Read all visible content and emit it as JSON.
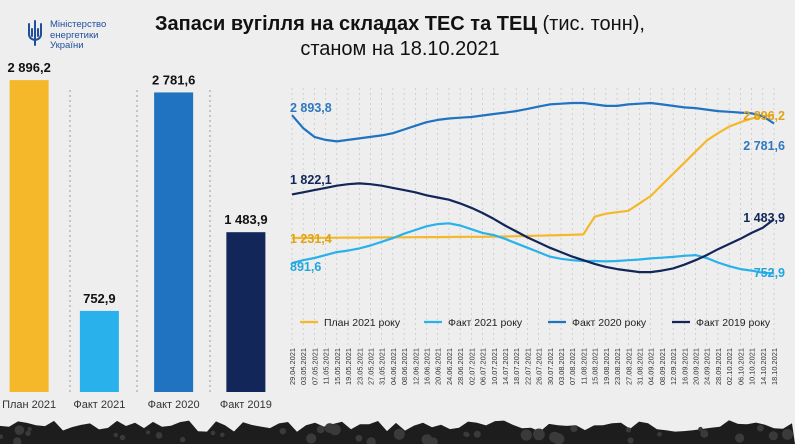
{
  "header": {
    "logo_lines": [
      "Міністерство",
      "енергетики",
      "України"
    ],
    "title_bold": "Запаси вугілля на складах ТЕС та ТЕЦ",
    "title_rest": " (тис. тонн),",
    "title_line2": "станом на 18.10.2021"
  },
  "colors": {
    "plan_2021": "#f5b82a",
    "fact_2021": "#28b1ea",
    "fact_2020": "#1f73c0",
    "fact_2019": "#12265a",
    "label_blue": "#2f78c0"
  },
  "chart_data": [
    {
      "type": "bar",
      "categories": [
        "План 2021",
        "Факт 2021",
        "Факт 2020",
        "Факт 2019"
      ],
      "values": [
        2896.2,
        752.9,
        2781.6,
        1483.9
      ],
      "value_labels": [
        "2 896,2",
        "752,9",
        "2 781,6",
        "1 483,9"
      ],
      "colors": [
        "#f5b82a",
        "#28b1ea",
        "#1f73c0",
        "#12265a"
      ],
      "ylim": [
        0,
        3250
      ]
    },
    {
      "type": "line",
      "x": [
        "29.04.2021",
        "03.05.2021",
        "07.05.2021",
        "11.05.2021",
        "15.05.2021",
        "19.05.2021",
        "23.05.2021",
        "27.05.2021",
        "31.05.2021",
        "04.06.2021",
        "08.06.2021",
        "12.06.2021",
        "16.06.2021",
        "20.06.2021",
        "24.06.2021",
        "28.06.2021",
        "02.07.2021",
        "06.07.2021",
        "10.07.2021",
        "14.07.2021",
        "18.07.2021",
        "22.07.2021",
        "26.07.2021",
        "30.07.2021",
        "03.08.2021",
        "07.08.2021",
        "11.08.2021",
        "15.08.2021",
        "19.08.2021",
        "23.08.2021",
        "27.08.2021",
        "31.08.2021",
        "04.09.2021",
        "08.09.2021",
        "12.09.2021",
        "16.09.2021",
        "20.09.2021",
        "24.09.2021",
        "28.09.2021",
        "02.10.2021",
        "06.10.2021",
        "10.10.2021",
        "14.10.2021",
        "18.10.2021"
      ],
      "ylim": [
        500,
        3100
      ],
      "series": [
        {
          "name": "План 2021 року",
          "color": "#f5b82a",
          "values": [
            1231.4,
            1232,
            1233,
            1234,
            1235,
            1236,
            1237,
            1238,
            1239,
            1240,
            1241,
            1242,
            1243,
            1244,
            1245,
            1246,
            1247,
            1248,
            1250,
            1252,
            1255,
            1258,
            1262,
            1266,
            1270,
            1275,
            1280,
            1520,
            1560,
            1580,
            1600,
            1700,
            1800,
            1950,
            2100,
            2250,
            2400,
            2550,
            2650,
            2740,
            2800,
            2850,
            2880,
            2896.2
          ],
          "start_label": "1 231,4",
          "end_label": "2 896,2"
        },
        {
          "name": "Факт 2021 року",
          "color": "#28b1ea",
          "values": [
            891.6,
            930,
            960,
            1000,
            1040,
            1060,
            1090,
            1130,
            1180,
            1230,
            1290,
            1340,
            1390,
            1420,
            1430,
            1400,
            1350,
            1300,
            1270,
            1220,
            1160,
            1100,
            1040,
            980,
            950,
            930,
            920,
            920,
            915,
            920,
            930,
            940,
            955,
            965,
            975,
            990,
            1000,
            960,
            900,
            850,
            810,
            790,
            760,
            752.9
          ],
          "start_label": "891,6",
          "end_label": "752,9"
        },
        {
          "name": "Факт 2020 року",
          "color": "#1f73c0",
          "values": [
            2893.8,
            2720,
            2600,
            2560,
            2540,
            2560,
            2580,
            2600,
            2620,
            2650,
            2700,
            2750,
            2800,
            2830,
            2850,
            2860,
            2870,
            2890,
            2910,
            2930,
            2950,
            2980,
            3010,
            3040,
            3050,
            3060,
            3060,
            3040,
            3020,
            3020,
            3040,
            3050,
            3060,
            3040,
            3020,
            3000,
            2990,
            2970,
            2950,
            2940,
            2930,
            2920,
            2880,
            2781.6
          ],
          "start_label": "2 893,8",
          "end_label": "2 781,6"
        },
        {
          "name": "Факт 2019 року",
          "color": "#12265a",
          "values": [
            1822.1,
            1850,
            1880,
            1910,
            1940,
            1960,
            1970,
            1960,
            1940,
            1910,
            1880,
            1850,
            1810,
            1780,
            1750,
            1700,
            1640,
            1570,
            1490,
            1400,
            1320,
            1240,
            1170,
            1100,
            1040,
            980,
            930,
            880,
            840,
            810,
            790,
            770,
            770,
            790,
            820,
            870,
            930,
            1000,
            1080,
            1150,
            1220,
            1300,
            1370,
            1483.9
          ],
          "start_label": "1 822,1",
          "end_label": "1 483,9"
        }
      ]
    }
  ]
}
